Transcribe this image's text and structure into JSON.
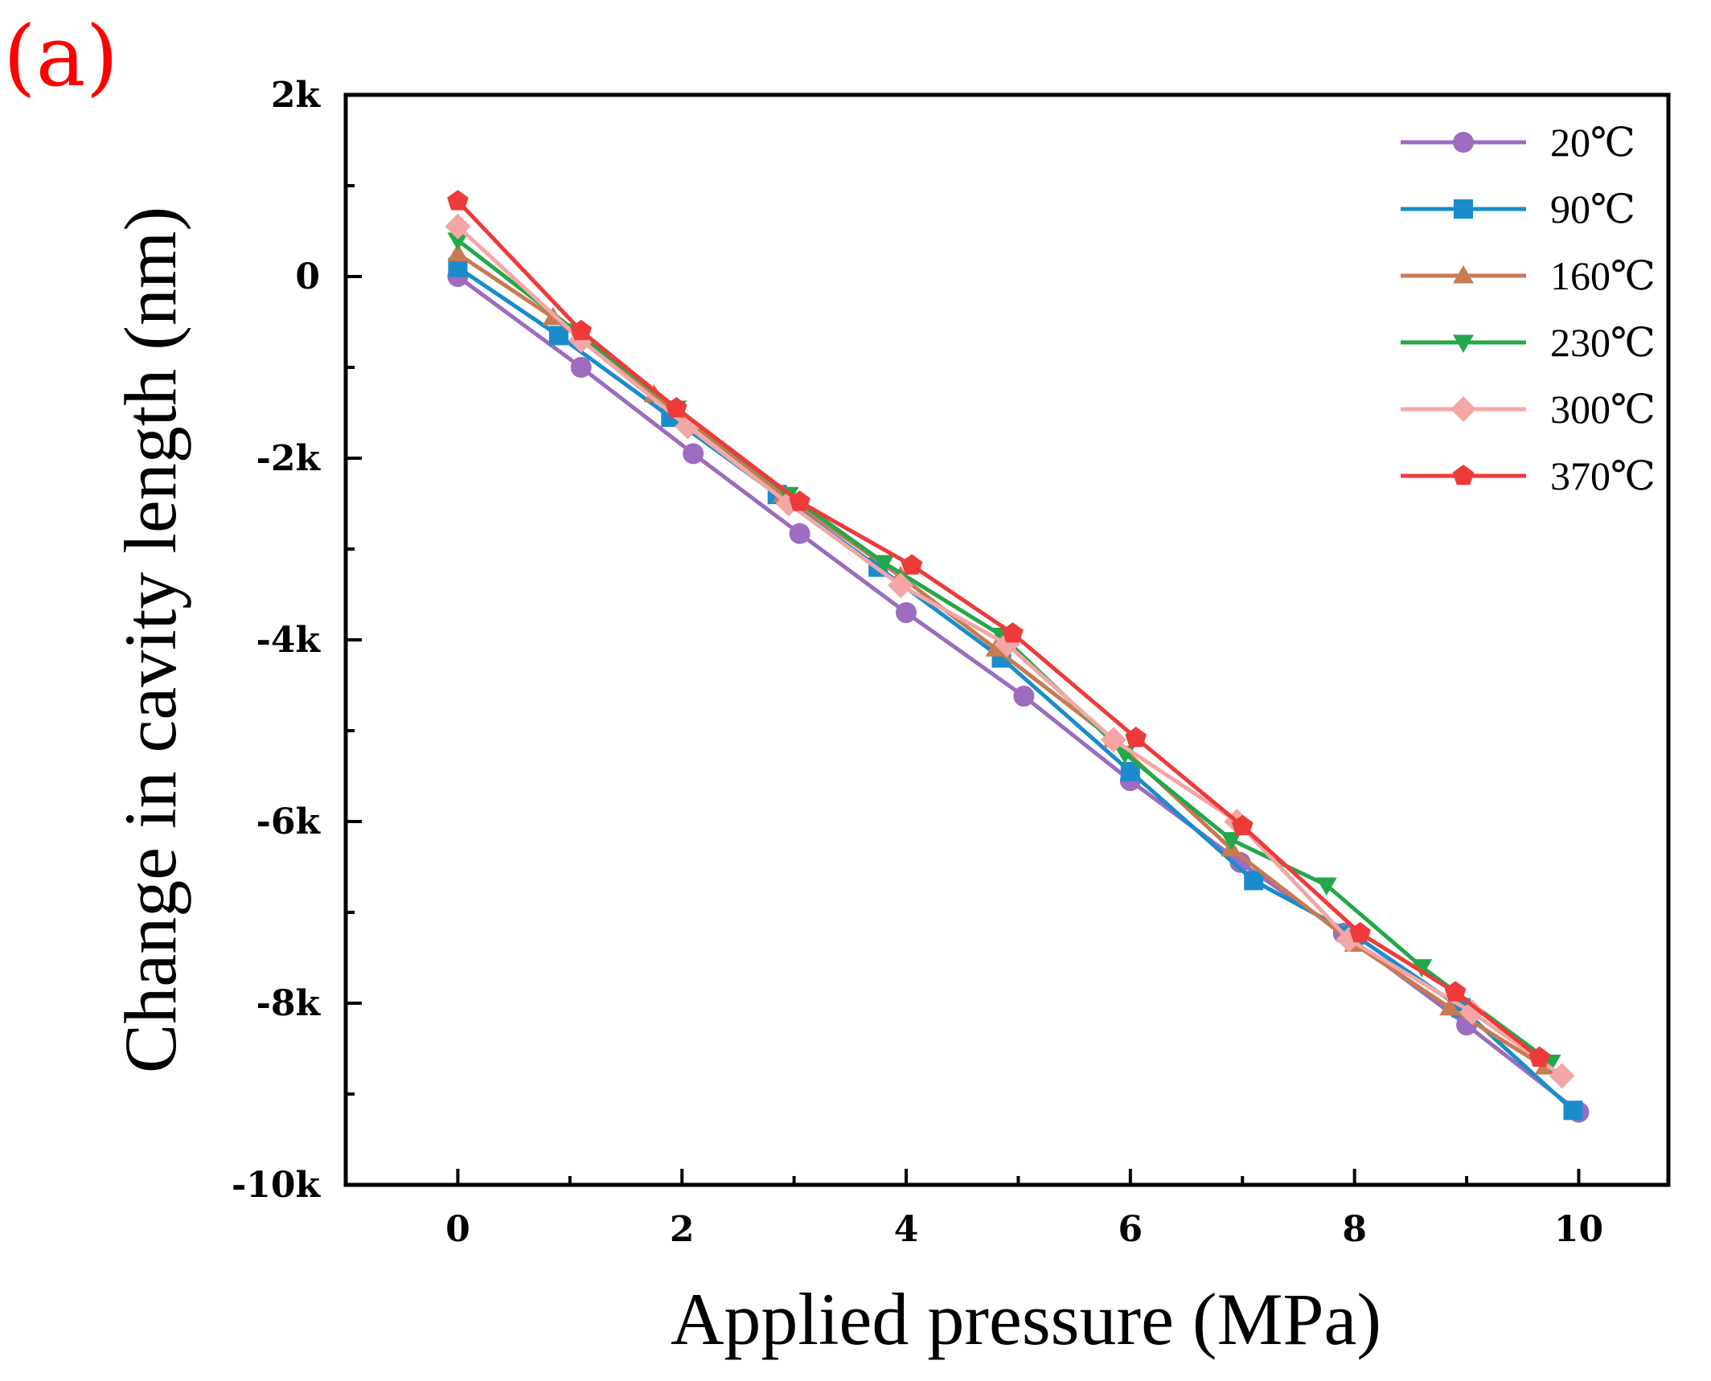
{
  "panel_label": "(a)",
  "chart_data": {
    "type": "line",
    "title": "",
    "xlabel": "Applied pressure (MPa)",
    "ylabel": "Change in cavity length (nm)",
    "xlim": [
      -1,
      10.8
    ],
    "ylim": [
      -10000,
      2000
    ],
    "xticks": [
      0,
      2,
      4,
      6,
      8,
      10
    ],
    "xtick_labels": [
      "0",
      "2",
      "4",
      "6",
      "8",
      "10"
    ],
    "yticks": [
      2000,
      0,
      -2000,
      -4000,
      -6000,
      -8000,
      -10000
    ],
    "ytick_labels": [
      "2k",
      "0",
      "-2k",
      "-4k",
      "-6k",
      "-8k",
      "-10k"
    ],
    "grid": false,
    "legend_position": "top-right",
    "series": [
      {
        "name": "20℃",
        "color": "#9b6cc0",
        "marker": "circle",
        "x": [
          0,
          1.1,
          2.1,
          3.05,
          4.0,
          5.05,
          6.0,
          6.98,
          7.9,
          9.0,
          10.0
        ],
        "y": [
          0,
          -1000,
          -1950,
          -2830,
          -3700,
          -4620,
          -5550,
          -6450,
          -7230,
          -8240,
          -9200
        ]
      },
      {
        "name": "90℃",
        "color": "#1a8ccc",
        "marker": "square",
        "x": [
          0,
          0.9,
          1.9,
          2.85,
          3.75,
          4.85,
          6.0,
          7.1,
          8.0,
          8.95,
          9.95
        ],
        "y": [
          100,
          -650,
          -1550,
          -2400,
          -3200,
          -4200,
          -5450,
          -6650,
          -7250,
          -8050,
          -9180
        ]
      },
      {
        "name": "160℃",
        "color": "#c87a50",
        "marker": "triangle-up",
        "x": [
          0,
          0.85,
          1.75,
          2.9,
          3.95,
          4.8,
          5.85,
          6.9,
          8.0,
          8.85,
          9.7
        ],
        "y": [
          250,
          -450,
          -1300,
          -2400,
          -3300,
          -4100,
          -5100,
          -6300,
          -7350,
          -8050,
          -8700
        ]
      },
      {
        "name": "230℃",
        "color": "#22a84a",
        "marker": "triangle-down",
        "x": [
          0,
          1.05,
          1.95,
          2.95,
          3.8,
          4.85,
          5.95,
          6.9,
          7.75,
          8.6,
          9.75
        ],
        "y": [
          400,
          -600,
          -1450,
          -2400,
          -3150,
          -3950,
          -5250,
          -6200,
          -6700,
          -7600,
          -8650
        ]
      },
      {
        "name": "300℃",
        "color": "#f4a6a6",
        "marker": "diamond",
        "x": [
          0,
          1.1,
          2.05,
          2.95,
          3.95,
          4.9,
          5.85,
          6.95,
          7.95,
          9.05,
          9.85
        ],
        "y": [
          550,
          -700,
          -1650,
          -2500,
          -3400,
          -4050,
          -5100,
          -6000,
          -7300,
          -8100,
          -8800
        ]
      },
      {
        "name": "370℃",
        "color": "#ef3a3a",
        "marker": "pentagon",
        "x": [
          0,
          1.1,
          1.95,
          3.05,
          4.05,
          4.95,
          6.05,
          7.0,
          8.05,
          8.9,
          9.65
        ],
        "y": [
          830,
          -600,
          -1450,
          -2480,
          -3180,
          -3930,
          -5080,
          -6050,
          -7230,
          -7880,
          -8600
        ]
      }
    ]
  }
}
